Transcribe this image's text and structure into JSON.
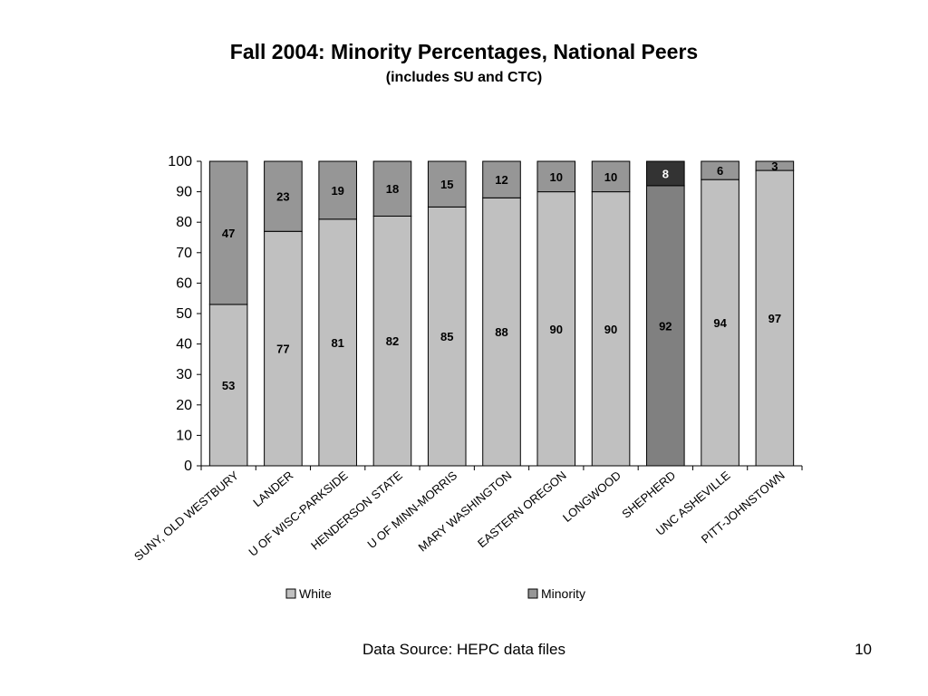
{
  "slide": {
    "footer_source": "Data Source: HEPC data files",
    "page_number": "10"
  },
  "chart_data": {
    "type": "bar",
    "stacked": true,
    "title": "Fall 2004: Minority Percentages, National Peers",
    "subtitle": "(includes SU and CTC)",
    "xlabel": "",
    "ylabel": "",
    "ylim": [
      0,
      100
    ],
    "yticks": [
      0,
      10,
      20,
      30,
      40,
      50,
      60,
      70,
      80,
      90,
      100
    ],
    "grid": false,
    "legend_position": "bottom",
    "categories": [
      "SUNY, OLD WESTBURY",
      "LANDER",
      "U OF WISC-PARKSIDE",
      "HENDERSON STATE",
      "U OF MINN-MORRIS",
      "MARY WASHINGTON",
      "EASTERN OREGON",
      "LONGWOOD",
      "SHEPHERD",
      "UNC ASHEVILLE",
      "PITT-JOHNSTOWN"
    ],
    "series": [
      {
        "name": "White",
        "color": "#c0c0c0",
        "values": [
          53,
          77,
          81,
          82,
          85,
          88,
          90,
          90,
          92,
          94,
          97
        ]
      },
      {
        "name": "Minority",
        "color": "#969696",
        "values": [
          47,
          23,
          19,
          18,
          15,
          12,
          10,
          10,
          8,
          6,
          3
        ]
      }
    ],
    "highlight": {
      "category": "SHEPHERD",
      "white_color": "#808080",
      "minority_color": "#333333",
      "minority_label_color": "#ffffff"
    }
  }
}
